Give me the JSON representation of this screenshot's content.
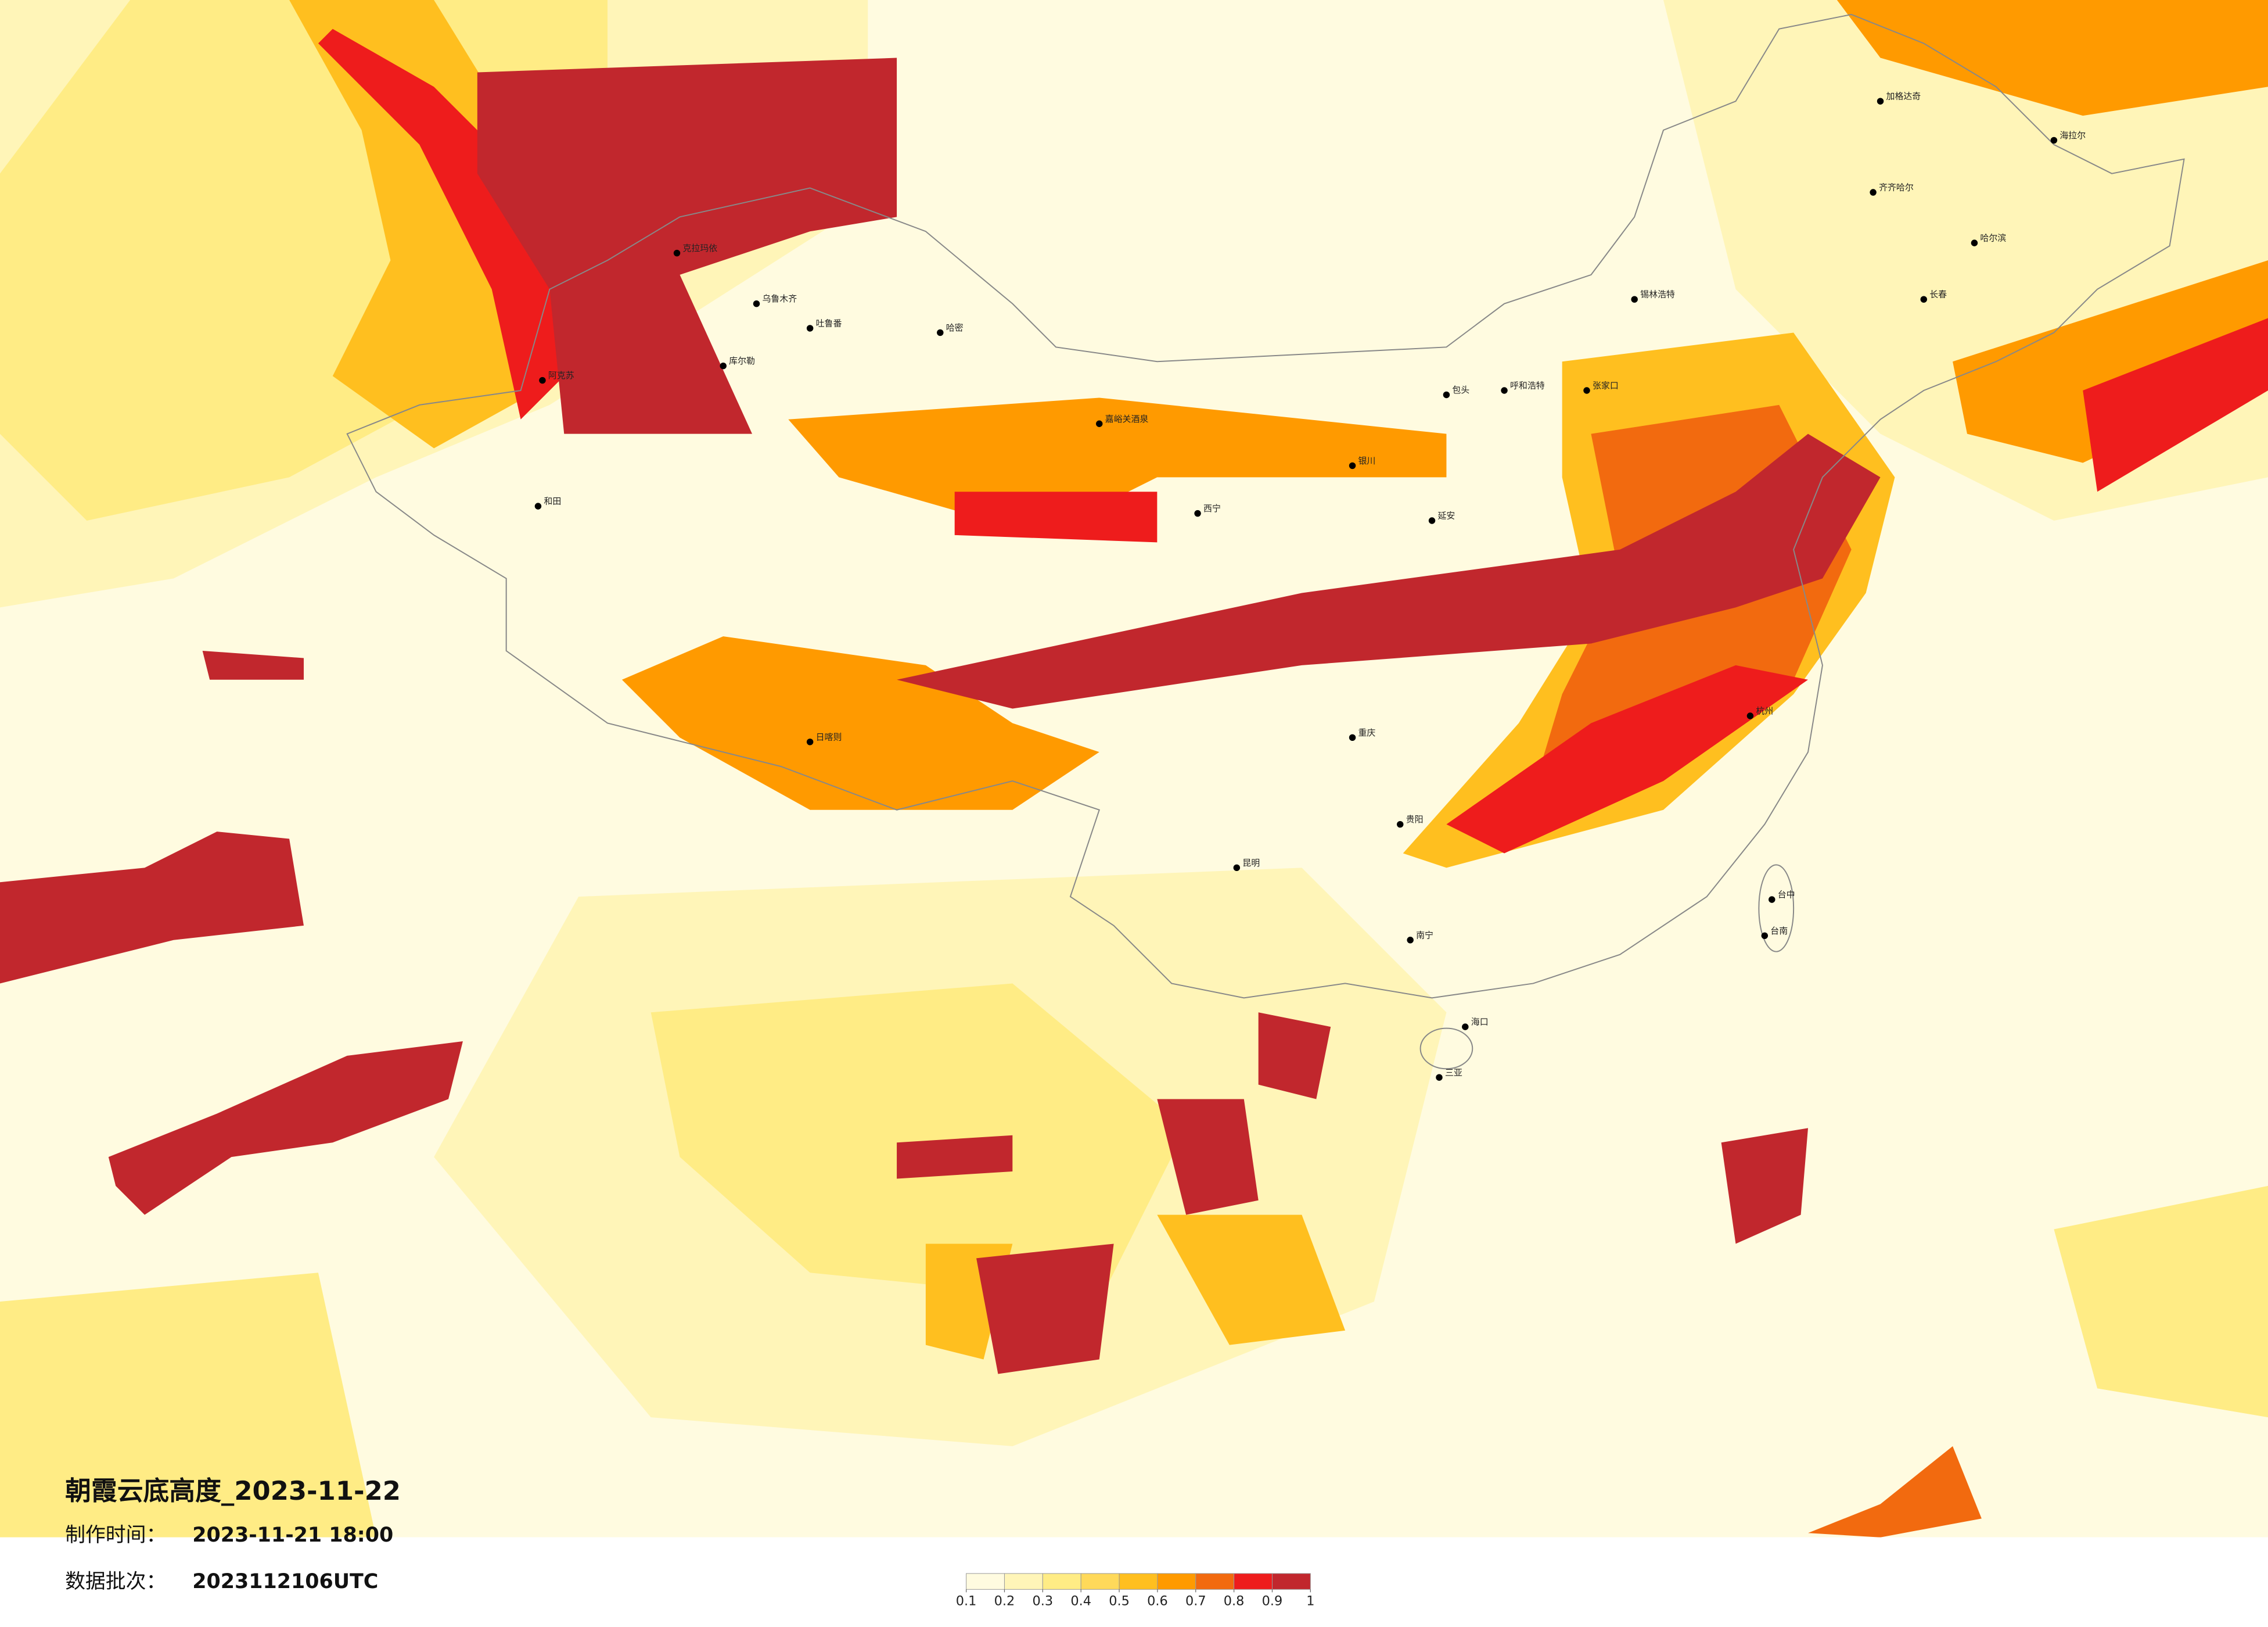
{
  "title": "朝霞云底高度_2023-11-22",
  "info": [
    {
      "label": "制作时间：",
      "value": "2023-11-21 18:00"
    },
    {
      "label": "数据批次：",
      "value": "2023112106UTC"
    }
  ],
  "legend": {
    "ticks": [
      0.1,
      0.2,
      0.3,
      0.4,
      0.5,
      0.6,
      0.7,
      0.8,
      0.9,
      1
    ],
    "colors": [
      "#fffbe0",
      "#fff5b8",
      "#ffec85",
      "#ffd95a",
      "#ffbf1f",
      "#ff9a00",
      "#f26a0f",
      "#ee1c1c",
      "#c1272d"
    ]
  },
  "cities": [
    "克拉玛依",
    "乌鲁木齐",
    "吐鲁番",
    "哈密",
    "库尔勒",
    "阿克苏",
    "和田",
    "海拉尔",
    "加格达奇",
    "齐齐哈尔",
    "哈尔滨",
    "锡林浩特",
    "长春",
    "呼和浩特",
    "包头",
    "张家口",
    "嘉峪关酒泉",
    "西宁",
    "银川",
    "延安",
    "日喀则",
    "重庆",
    "昆明",
    "贵阳",
    "南宁",
    "海口",
    "三亚",
    "台中",
    "台南",
    "杭州"
  ]
}
